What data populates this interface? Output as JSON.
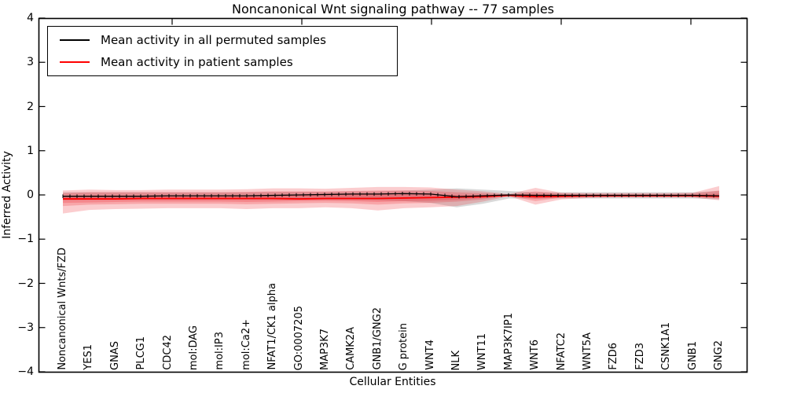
{
  "title": "Noncanonical Wnt signaling pathway -- 77 samples",
  "legend": {
    "items": [
      {
        "label": "Mean activity in all permuted samples",
        "color": "#000000"
      },
      {
        "label": "Mean activity in patient samples",
        "color": "#ff0000"
      }
    ]
  },
  "axes": {
    "xlabel": "Cellular Entities",
    "ylabel": "Inferred Activity",
    "ytick_labels": [
      "4",
      "3",
      "2",
      "1",
      "0",
      "−1",
      "−2",
      "−3",
      "−4"
    ],
    "ytick_values": [
      4,
      3,
      2,
      1,
      0,
      -1,
      -2,
      -3,
      -4
    ],
    "ylim": [
      -4,
      4
    ],
    "grid": false,
    "frame_color": "#000000"
  },
  "chart_data": {
    "type": "line",
    "title": "Noncanonical Wnt signaling pathway -- 77 samples",
    "xlabel": "Cellular Entities",
    "ylabel": "Inferred Activity",
    "ylim": [
      -4,
      4
    ],
    "legend_position": "upper left",
    "categories": [
      "Noncanonical Wnts/FZD",
      "YES1",
      "GNAS",
      "PLCG1",
      "CDC42",
      "mol:DAG",
      "mol:IP3",
      "mol:Ca2+",
      "NFAT1/CK1 alpha",
      "GO:0007205",
      "MAP3K7",
      "CAMK2A",
      "GNB1/GNG2",
      "G protein",
      "WNT4",
      "NLK",
      "WNT11",
      "MAP3K7IP1",
      "WNT6",
      "NFATC2",
      "WNT5A",
      "FZD6",
      "FZD3",
      "CSNK1A1",
      "GNB1",
      "GNG2"
    ],
    "series": [
      {
        "name": "Mean activity in all permuted samples",
        "color": "#000000",
        "values": [
          -0.03,
          -0.03,
          -0.03,
          -0.03,
          -0.02,
          -0.02,
          -0.02,
          -0.02,
          -0.01,
          0.0,
          0.01,
          0.02,
          0.02,
          0.03,
          0.02,
          -0.04,
          -0.02,
          0.0,
          -0.01,
          -0.01,
          -0.01,
          -0.01,
          -0.01,
          -0.01,
          -0.01,
          -0.02
        ]
      },
      {
        "name": "Mean activity in patient samples",
        "color": "#ff0000",
        "values": [
          -0.09,
          -0.09,
          -0.09,
          -0.08,
          -0.08,
          -0.08,
          -0.08,
          -0.08,
          -0.08,
          -0.09,
          -0.08,
          -0.08,
          -0.08,
          -0.07,
          -0.06,
          -0.05,
          -0.04,
          -0.01,
          -0.04,
          -0.03,
          -0.02,
          -0.02,
          -0.02,
          -0.02,
          -0.02,
          -0.03
        ]
      }
    ],
    "bands": [
      {
        "name": "permuted-band",
        "color": "rgba(120,120,120,0.28)",
        "upper": [
          0.06,
          0.06,
          0.06,
          0.06,
          0.06,
          0.06,
          0.06,
          0.06,
          0.07,
          0.07,
          0.07,
          0.08,
          0.08,
          0.1,
          0.12,
          0.15,
          0.12,
          0.09,
          0.06,
          0.06,
          0.06,
          0.06,
          0.06,
          0.06,
          0.06,
          0.09
        ],
        "lower": [
          -0.12,
          -0.11,
          -0.11,
          -0.11,
          -0.11,
          -0.11,
          -0.11,
          -0.11,
          -0.11,
          -0.11,
          -0.11,
          -0.11,
          -0.12,
          -0.14,
          -0.18,
          -0.28,
          -0.2,
          -0.08,
          -0.08,
          -0.08,
          -0.08,
          -0.08,
          -0.08,
          -0.08,
          -0.08,
          -0.1
        ]
      },
      {
        "name": "patient-band-outer",
        "color": "rgba(237,28,36,0.22)",
        "upper": [
          0.1,
          0.12,
          0.11,
          0.11,
          0.12,
          0.12,
          0.12,
          0.13,
          0.15,
          0.15,
          0.14,
          0.16,
          0.18,
          0.18,
          0.17,
          0.12,
          0.08,
          0.02,
          0.16,
          0.05,
          0.04,
          0.04,
          0.04,
          0.04,
          0.05,
          0.2
        ],
        "lower": [
          -0.42,
          -0.34,
          -0.32,
          -0.31,
          -0.3,
          -0.3,
          -0.3,
          -0.32,
          -0.3,
          -0.3,
          -0.28,
          -0.3,
          -0.35,
          -0.3,
          -0.28,
          -0.25,
          -0.15,
          -0.03,
          -0.22,
          -0.1,
          -0.07,
          -0.06,
          -0.06,
          -0.06,
          -0.06,
          -0.12
        ]
      },
      {
        "name": "patient-band-middle",
        "color": "rgba(237,28,36,0.22)",
        "upper": [
          0.04,
          0.06,
          0.06,
          0.06,
          0.06,
          0.06,
          0.06,
          0.07,
          0.08,
          0.08,
          0.08,
          0.09,
          0.1,
          0.1,
          0.09,
          0.06,
          0.04,
          0.01,
          0.08,
          0.03,
          0.02,
          0.02,
          0.02,
          0.02,
          0.03,
          0.1
        ],
        "lower": [
          -0.25,
          -0.22,
          -0.21,
          -0.2,
          -0.2,
          -0.2,
          -0.2,
          -0.21,
          -0.2,
          -0.19,
          -0.18,
          -0.19,
          -0.22,
          -0.19,
          -0.18,
          -0.15,
          -0.1,
          -0.02,
          -0.14,
          -0.06,
          -0.05,
          -0.04,
          -0.04,
          -0.04,
          -0.04,
          -0.08
        ],
        "note": ""
      },
      {
        "name": "patient-band-inner",
        "color": "rgba(237,28,36,0.22)",
        "upper": [
          -0.02,
          -0.01,
          -0.01,
          -0.01,
          -0.01,
          -0.01,
          -0.01,
          -0.01,
          0.0,
          0.0,
          0.0,
          0.01,
          0.01,
          0.01,
          0.01,
          0.0,
          0.0,
          0.0,
          0.02,
          0.0,
          0.0,
          0.0,
          0.0,
          0.0,
          0.0,
          0.03
        ],
        "lower": [
          -0.18,
          -0.17,
          -0.16,
          -0.15,
          -0.15,
          -0.15,
          -0.15,
          -0.16,
          -0.15,
          -0.14,
          -0.13,
          -0.14,
          -0.16,
          -0.14,
          -0.13,
          -0.11,
          -0.07,
          -0.02,
          -0.09,
          -0.05,
          -0.04,
          -0.03,
          -0.03,
          -0.03,
          -0.03,
          -0.06
        ]
      }
    ]
  }
}
